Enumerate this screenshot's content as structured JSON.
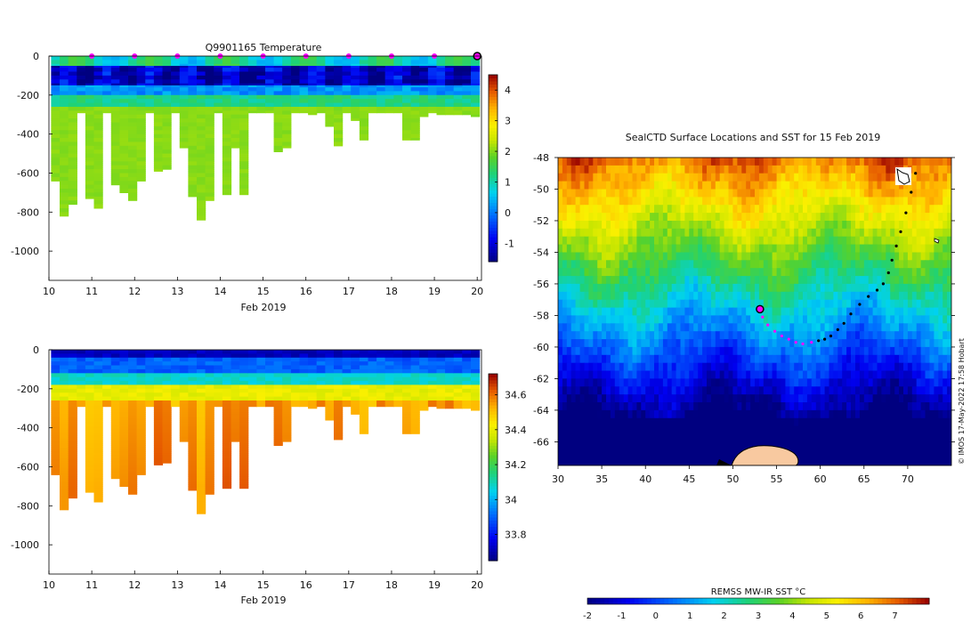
{
  "chart_data": [
    {
      "type": "heatmap",
      "panel": "temperature-section",
      "title": "Q9901165  Temperature",
      "xlabel": "Feb 2019",
      "ylabel": "",
      "x_ticks": [
        "10",
        "11",
        "12",
        "13",
        "14",
        "15",
        "16",
        "17",
        "18",
        "19",
        "20"
      ],
      "xlim": [
        10,
        20.1
      ],
      "y_ticks": [
        "0",
        "-200",
        "-400",
        "-600",
        "-800",
        "-1000"
      ],
      "ylim": [
        -1150,
        0
      ],
      "profile_days": [
        10.0,
        10.2,
        10.4,
        10.6,
        10.8,
        11.0,
        11.2,
        11.4,
        11.6,
        11.8,
        12.0,
        12.2,
        12.4,
        12.6,
        12.8,
        13.0,
        13.2,
        13.4,
        13.6,
        13.8,
        14.0,
        14.2,
        14.4,
        14.6,
        14.8,
        15.0,
        15.2,
        15.4,
        15.6,
        15.8,
        16.0,
        16.2,
        16.4,
        16.6,
        16.8,
        17.0,
        17.2,
        17.4,
        17.6,
        17.8,
        18.0,
        18.2,
        18.4,
        18.6,
        18.8,
        19.0,
        19.2,
        19.4,
        19.6,
        19.8
      ],
      "profile_max_depth_m": [
        640,
        820,
        760,
        290,
        730,
        780,
        290,
        660,
        700,
        740,
        640,
        290,
        590,
        580,
        290,
        470,
        720,
        835,
        740,
        290,
        710,
        470,
        710,
        290,
        290,
        290,
        485,
        470,
        290,
        290,
        295,
        290,
        360,
        460,
        290,
        330,
        430,
        290,
        290,
        290,
        290,
        430,
        430,
        310,
        290,
        300,
        300,
        300,
        300,
        310
      ],
      "surface_markers_days": [
        11,
        12,
        13,
        14,
        15,
        16,
        17,
        18,
        19
      ],
      "last_position_day": 20,
      "colorbar": {
        "label": "",
        "ticks": [
          "-1",
          "0",
          "1",
          "2",
          "3",
          "4"
        ],
        "range": [
          -1.6,
          4.5
        ]
      },
      "layers": [
        {
          "depth_m": "0-50",
          "value_c": 1.0
        },
        {
          "depth_m": "50-150",
          "value_c": -1.2
        },
        {
          "depth_m": "150-250",
          "value_c": 0.8
        },
        {
          "depth_m": "250-850",
          "value_c": 2.0
        }
      ]
    },
    {
      "type": "heatmap",
      "panel": "salinity-section",
      "title": "",
      "xlabel": "Feb 2019",
      "x_ticks": [
        "10",
        "11",
        "12",
        "13",
        "14",
        "15",
        "16",
        "17",
        "18",
        "19",
        "20"
      ],
      "xlim": [
        10,
        20.1
      ],
      "y_ticks": [
        "0",
        "-200",
        "-400",
        "-600",
        "-800",
        "-1000"
      ],
      "ylim": [
        -1150,
        0
      ],
      "colorbar": {
        "label": "",
        "ticks": [
          "33.8",
          "34",
          "34.2",
          "34.4",
          "34.6"
        ],
        "range": [
          33.65,
          34.72
        ]
      },
      "layers": [
        {
          "depth_m": "0-100",
          "value": 33.85
        },
        {
          "depth_m": "100-200",
          "value": 34.05
        },
        {
          "depth_m": "200-300",
          "value": 34.45
        },
        {
          "depth_m": "300-850",
          "value": 34.6
        }
      ]
    },
    {
      "type": "heatmap",
      "panel": "sst-map",
      "title": "SealCTD Surface Locations and SST for 15 Feb 2019",
      "xlabel": "",
      "ylabel": "",
      "x_ticks": [
        "30",
        "35",
        "40",
        "45",
        "50",
        "55",
        "60",
        "65",
        "70"
      ],
      "xlim": [
        30,
        75
      ],
      "y_ticks": [
        "-48",
        "-50",
        "-52",
        "-54",
        "-56",
        "-58",
        "-60",
        "-62",
        "-64",
        "-66"
      ],
      "ylim": [
        -67.5,
        -48
      ],
      "colorbar": {
        "label": "REMSS MW-IR SST °C",
        "ticks": [
          "-2",
          "-1",
          "0",
          "1",
          "2",
          "3",
          "4",
          "5",
          "6",
          "7"
        ],
        "range": [
          -2,
          8
        ]
      },
      "track": {
        "lon": [
          70.9,
          70.4,
          69.8,
          69.2,
          68.7,
          68.2,
          67.8,
          67.2,
          66.5,
          65.5,
          64.5,
          63.5,
          62.7,
          62.0,
          61.2,
          60.5,
          59.8,
          59.0,
          58.0,
          57.2,
          56.4,
          55.6,
          54.8,
          54.0,
          53.4,
          53.1
        ],
        "lat": [
          -49.0,
          -50.2,
          -51.5,
          -52.7,
          -53.6,
          -54.5,
          -55.3,
          -56.0,
          -56.4,
          -56.8,
          -57.3,
          -57.9,
          -58.5,
          -58.9,
          -59.3,
          -59.5,
          -59.6,
          -59.7,
          -59.8,
          -59.7,
          -59.5,
          -59.3,
          -59.0,
          -58.6,
          -58.1,
          -57.6
        ]
      },
      "track_magenta_from_index": 17,
      "start_marker": {
        "lon": 53.1,
        "lat": -57.6
      },
      "watermark": "© IMOS 17-May-2022 17:58 Hobart"
    }
  ]
}
